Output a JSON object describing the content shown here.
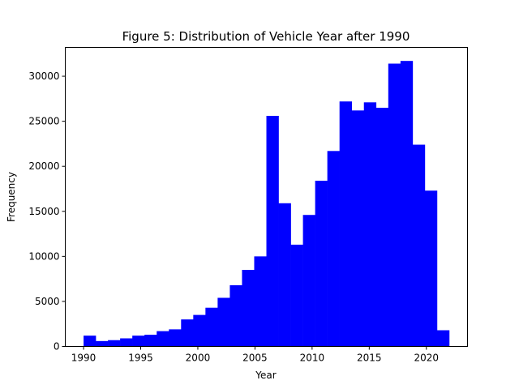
{
  "chart_data": {
    "type": "bar",
    "title": "Figure 5: Distribution of Vehicle Year after 1990",
    "xlabel": "Year",
    "ylabel": "Frequency",
    "bar_color": "#0000ff",
    "xlim": [
      1988.4,
      2023.6
    ],
    "ylim": [
      0,
      33200
    ],
    "xticks": [
      1990,
      1995,
      2000,
      2005,
      2010,
      2015,
      2020
    ],
    "yticks": [
      0,
      5000,
      10000,
      15000,
      20000,
      25000,
      30000
    ],
    "bin_start": 1990,
    "bin_end": 2022,
    "bin_count": 30,
    "values": [
      1200,
      600,
      700,
      900,
      1200,
      1300,
      1700,
      1900,
      3000,
      3500,
      4300,
      5400,
      6800,
      8500,
      10000,
      25600,
      15900,
      11300,
      14600,
      18400,
      21700,
      27200,
      26200,
      27100,
      26500,
      31400,
      31700,
      22400,
      17300,
      1800
    ]
  }
}
